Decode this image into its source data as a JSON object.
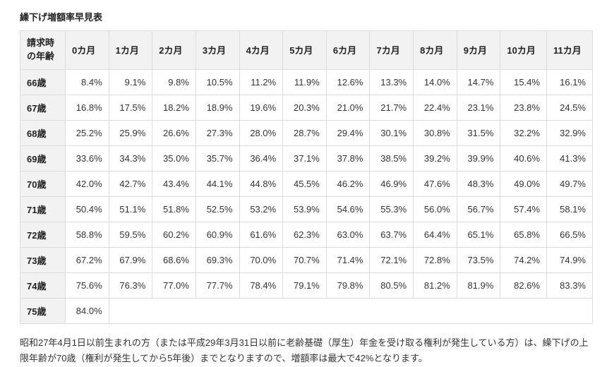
{
  "page": {
    "footnote": "昭和27年4月1日以前生まれの方（または平成29年3月31日以前に老齢基礎（厚生）年金を受け取る権利が発生している方）は、繰下げの上限年齢が70歳（権利が発生してから5年後）までとなりますので、増額率は最大で42%となります。"
  },
  "chart_data": {
    "type": "table",
    "title": "繰下げ増額率早見表",
    "corner_header": "請求時の年齢",
    "column_headers": [
      "0カ月",
      "1カ月",
      "2カ月",
      "3カ月",
      "4カ月",
      "5カ月",
      "6カ月",
      "7カ月",
      "8カ月",
      "9カ月",
      "10カ月",
      "11カ月"
    ],
    "rows": [
      {
        "age": "66歳",
        "values": [
          "8.4%",
          "9.1%",
          "9.8%",
          "10.5%",
          "11.2%",
          "11.9%",
          "12.6%",
          "13.3%",
          "14.0%",
          "14.7%",
          "15.4%",
          "16.1%"
        ]
      },
      {
        "age": "67歳",
        "values": [
          "16.8%",
          "17.5%",
          "18.2%",
          "18.9%",
          "19.6%",
          "20.3%",
          "21.0%",
          "21.7%",
          "22.4%",
          "23.1%",
          "23.8%",
          "24.5%"
        ]
      },
      {
        "age": "68歳",
        "values": [
          "25.2%",
          "25.9%",
          "26.6%",
          "27.3%",
          "28.0%",
          "28.7%",
          "29.4%",
          "30.1%",
          "30.8%",
          "31.5%",
          "32.2%",
          "32.9%"
        ]
      },
      {
        "age": "69歳",
        "values": [
          "33.6%",
          "34.3%",
          "35.0%",
          "35.7%",
          "36.4%",
          "37.1%",
          "37.8%",
          "38.5%",
          "39.2%",
          "39.9%",
          "40.6%",
          "41.3%"
        ]
      },
      {
        "age": "70歳",
        "values": [
          "42.0%",
          "42.7%",
          "43.4%",
          "44.1%",
          "44.8%",
          "45.5%",
          "46.2%",
          "46.9%",
          "47.6%",
          "48.3%",
          "49.0%",
          "49.7%"
        ]
      },
      {
        "age": "71歳",
        "values": [
          "50.4%",
          "51.1%",
          "51.8%",
          "52.5%",
          "53.2%",
          "53.9%",
          "54.6%",
          "55.3%",
          "56.0%",
          "56.7%",
          "57.4%",
          "58.1%"
        ]
      },
      {
        "age": "72歳",
        "values": [
          "58.8%",
          "59.5%",
          "60.2%",
          "60.9%",
          "61.6%",
          "62.3%",
          "63.0%",
          "63.7%",
          "64.4%",
          "65.1%",
          "65.8%",
          "66.5%"
        ]
      },
      {
        "age": "73歳",
        "values": [
          "67.2%",
          "67.9%",
          "68.6%",
          "69.3%",
          "70.0%",
          "70.7%",
          "71.4%",
          "72.1%",
          "72.8%",
          "73.5%",
          "74.2%",
          "74.9%"
        ]
      },
      {
        "age": "74歳",
        "values": [
          "75.6%",
          "76.3%",
          "77.0%",
          "77.7%",
          "78.4%",
          "79.1%",
          "79.8%",
          "80.5%",
          "81.2%",
          "81.9%",
          "82.6%",
          "83.3%"
        ]
      },
      {
        "age": "75歳",
        "values": [
          "84.0%"
        ]
      }
    ]
  }
}
